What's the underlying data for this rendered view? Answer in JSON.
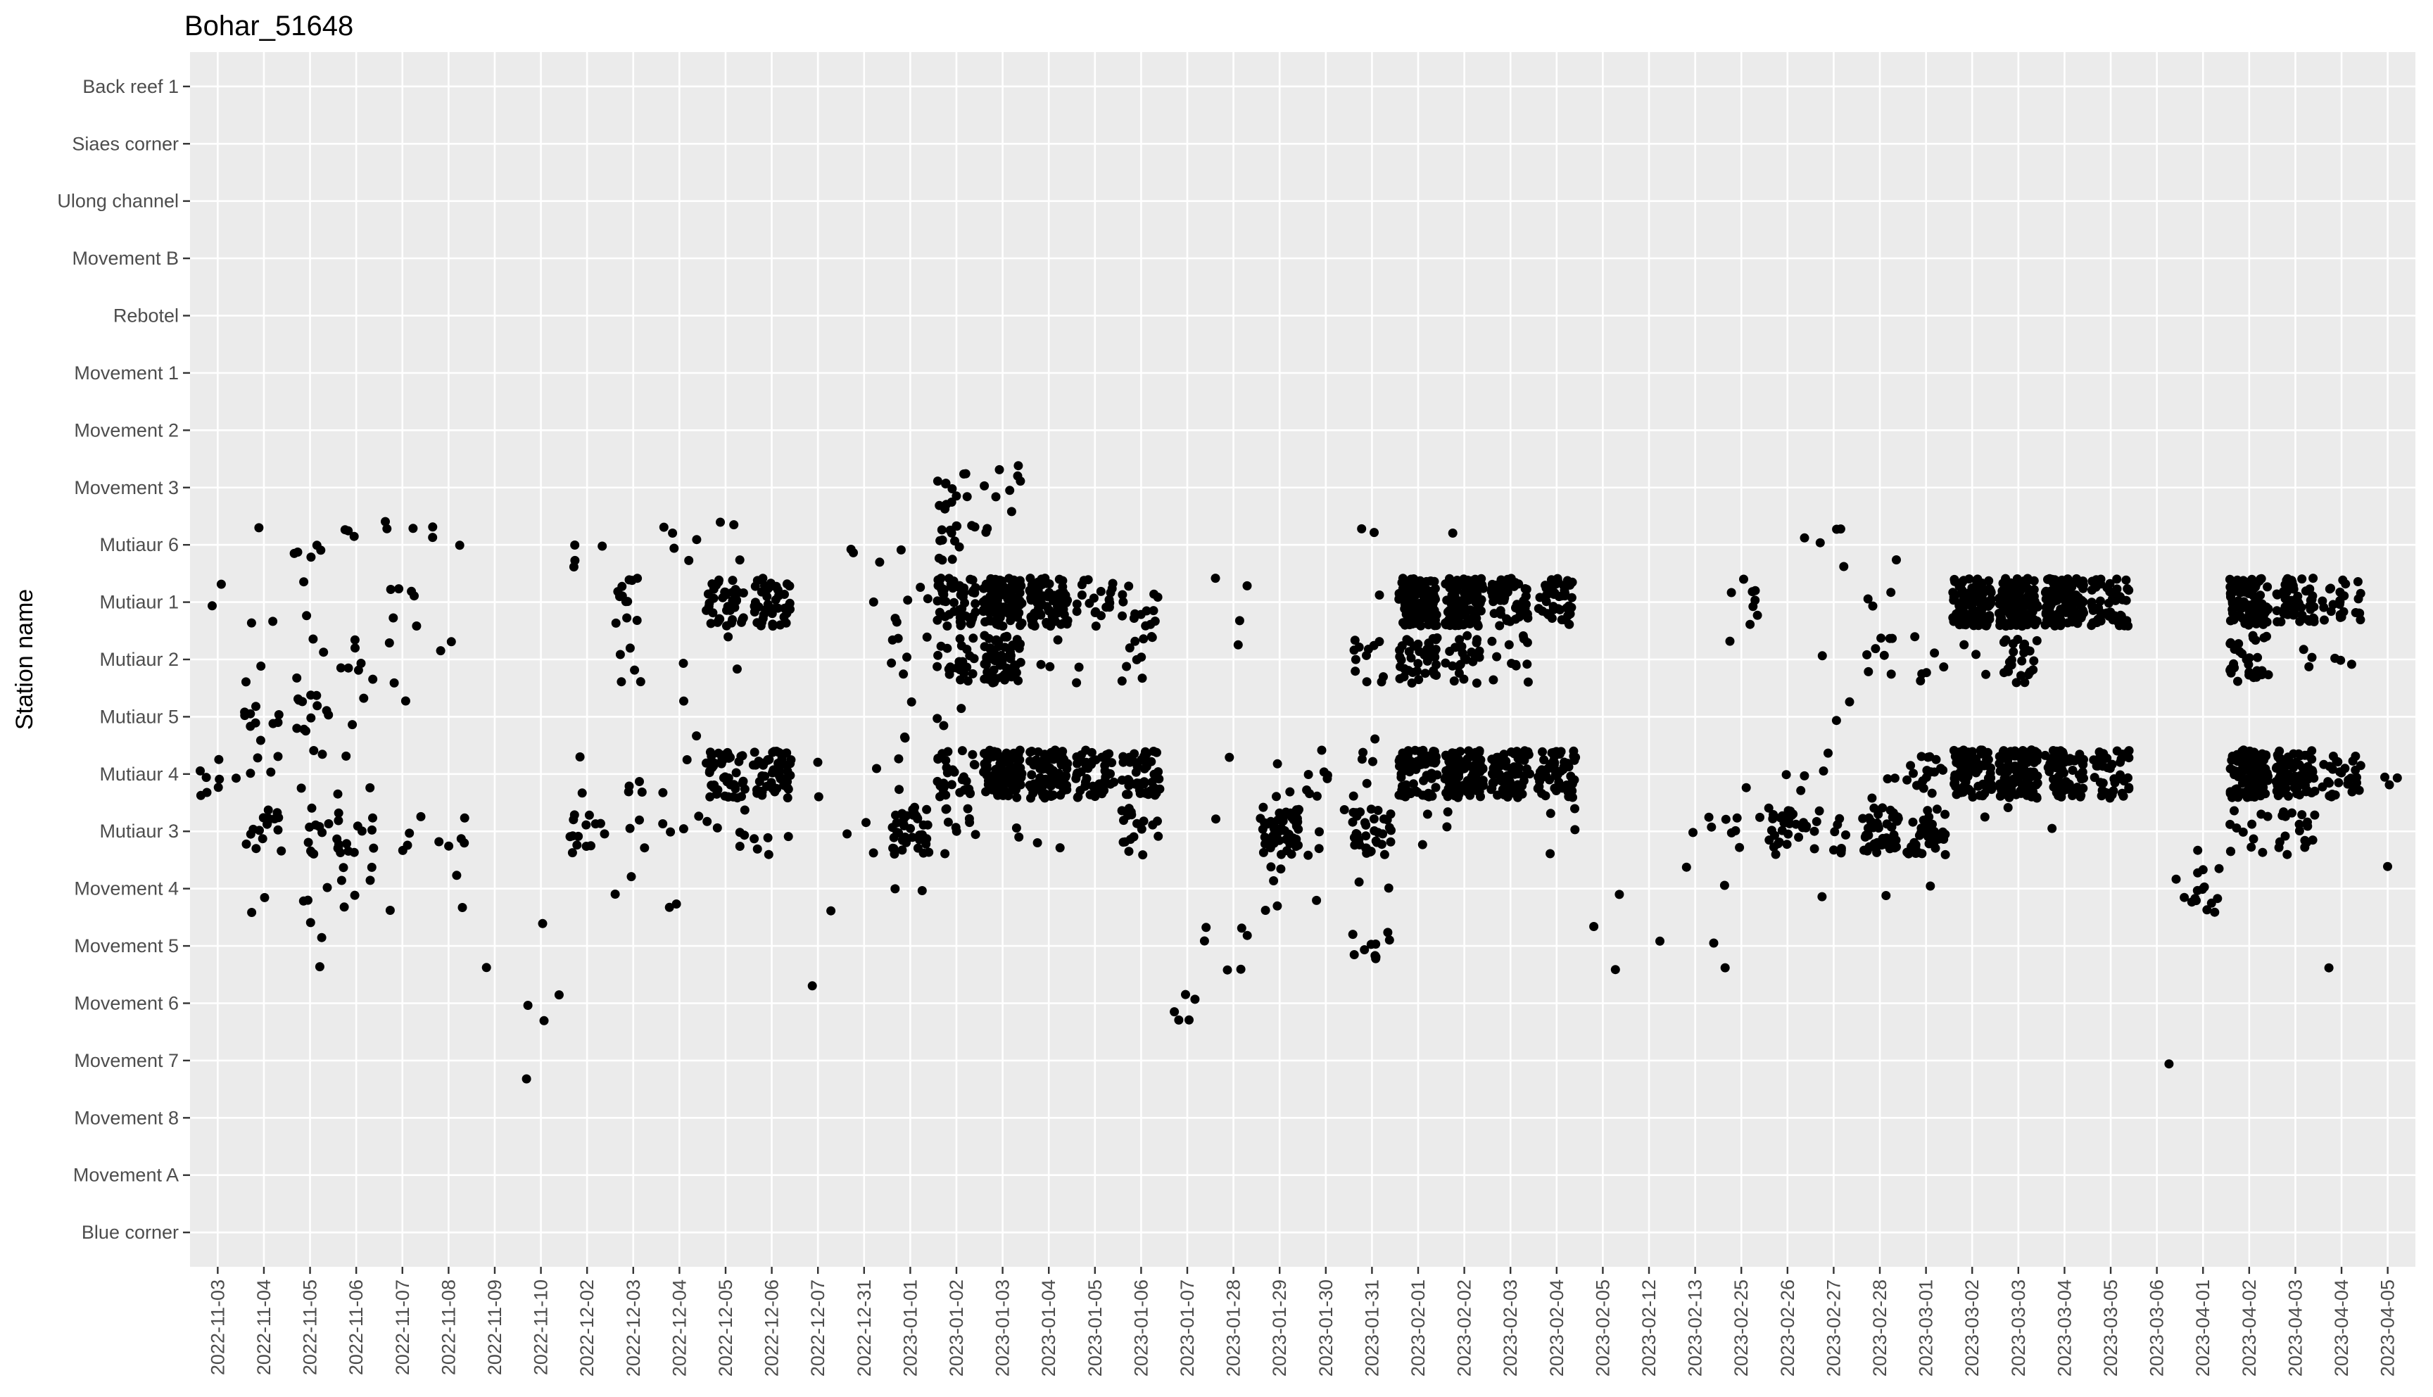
{
  "chart_data": {
    "type": "scatter",
    "title": "Bohar_51648",
    "xlabel": "",
    "ylabel": "Station name",
    "grid": true,
    "legend": "none",
    "colors": {
      "panel": "#ebebeb",
      "grid": "#ffffff",
      "points": "#000000",
      "ticks": "#4d4d4d"
    },
    "x_categories": [
      "2022-11-03",
      "2022-11-04",
      "2022-11-05",
      "2022-11-06",
      "2022-11-07",
      "2022-11-08",
      "2022-11-09",
      "2022-11-10",
      "2022-12-02",
      "2022-12-03",
      "2022-12-04",
      "2022-12-05",
      "2022-12-06",
      "2022-12-07",
      "2022-12-31",
      "2023-01-01",
      "2023-01-02",
      "2023-01-03",
      "2023-01-04",
      "2023-01-05",
      "2023-01-06",
      "2023-01-07",
      "2023-01-28",
      "2023-01-29",
      "2023-01-30",
      "2023-01-31",
      "2023-02-01",
      "2023-02-02",
      "2023-02-03",
      "2023-02-04",
      "2023-02-05",
      "2023-02-12",
      "2023-02-13",
      "2023-02-25",
      "2023-02-26",
      "2023-02-27",
      "2023-02-28",
      "2023-03-01",
      "2023-03-02",
      "2023-03-03",
      "2023-03-04",
      "2023-03-05",
      "2023-03-06",
      "2023-04-01",
      "2023-04-02",
      "2023-04-03",
      "2023-04-04",
      "2023-04-05"
    ],
    "y_categories": [
      "Blue corner",
      "Movement A",
      "Movement 8",
      "Movement 7",
      "Movement 6",
      "Movement 5",
      "Movement 4",
      "Mutiaur 3",
      "Mutiaur 4",
      "Mutiaur 5",
      "Mutiaur 2",
      "Mutiaur 1",
      "Mutiaur 6",
      "Movement 3",
      "Movement 2",
      "Movement 1",
      "Rebotel",
      "Movement B",
      "Ulong channel",
      "Siaes corner",
      "Back reef 1"
    ],
    "point_groups": [
      {
        "x": "2022-11-03",
        "y": "Mutiaur 4",
        "n": 8
      },
      {
        "x": "2022-11-03",
        "y": "Mutiaur 1",
        "n": 2
      },
      {
        "x": "2022-11-04",
        "y": "Mutiaur 6",
        "n": 1
      },
      {
        "x": "2022-11-04",
        "y": "Mutiaur 1",
        "n": 2
      },
      {
        "x": "2022-11-04",
        "y": "Mutiaur 2",
        "n": 2
      },
      {
        "x": "2022-11-04",
        "y": "Mutiaur 5",
        "n": 10
      },
      {
        "x": "2022-11-04",
        "y": "Mutiaur 4",
        "n": 4
      },
      {
        "x": "2022-11-04",
        "y": "Mutiaur 3",
        "n": 16
      },
      {
        "x": "2022-11-04",
        "y": "Movement 4",
        "n": 2
      },
      {
        "x": "2022-11-05",
        "y": "Mutiaur 6",
        "n": 5
      },
      {
        "x": "2022-11-05",
        "y": "Mutiaur 1",
        "n": 2
      },
      {
        "x": "2022-11-05",
        "y": "Mutiaur 2",
        "n": 3
      },
      {
        "x": "2022-11-05",
        "y": "Mutiaur 5",
        "n": 12
      },
      {
        "x": "2022-11-05",
        "y": "Mutiaur 4",
        "n": 3
      },
      {
        "x": "2022-11-05",
        "y": "Mutiaur 3",
        "n": 10
      },
      {
        "x": "2022-11-05",
        "y": "Movement 4",
        "n": 3
      },
      {
        "x": "2022-11-05",
        "y": "Movement 5",
        "n": 3
      },
      {
        "x": "2022-11-06",
        "y": "Mutiaur 6",
        "n": 3
      },
      {
        "x": "2022-11-06",
        "y": "Mutiaur 2",
        "n": 7
      },
      {
        "x": "2022-11-06",
        "y": "Mutiaur 5",
        "n": 2
      },
      {
        "x": "2022-11-06",
        "y": "Mutiaur 4",
        "n": 3
      },
      {
        "x": "2022-11-06",
        "y": "Mutiaur 3",
        "n": 16
      },
      {
        "x": "2022-11-06",
        "y": "Movement 4",
        "n": 6
      },
      {
        "x": "2022-11-07",
        "y": "Mutiaur 6",
        "n": 3
      },
      {
        "x": "2022-11-07",
        "y": "Mutiaur 1",
        "n": 6
      },
      {
        "x": "2022-11-07",
        "y": "Mutiaur 2",
        "n": 2
      },
      {
        "x": "2022-11-07",
        "y": "Mutiaur 5",
        "n": 1
      },
      {
        "x": "2022-11-07",
        "y": "Mutiaur 3",
        "n": 4
      },
      {
        "x": "2022-11-07",
        "y": "Movement 4",
        "n": 1
      },
      {
        "x": "2022-11-08",
        "y": "Mutiaur 6",
        "n": 3
      },
      {
        "x": "2022-11-08",
        "y": "Mutiaur 2",
        "n": 2
      },
      {
        "x": "2022-11-08",
        "y": "Mutiaur 3",
        "n": 5
      },
      {
        "x": "2022-11-08",
        "y": "Movement 4",
        "n": 2
      },
      {
        "x": "2022-11-09",
        "y": "Movement 5",
        "n": 1
      },
      {
        "x": "2022-11-10",
        "y": "Movement 5",
        "n": 1
      },
      {
        "x": "2022-11-10",
        "y": "Movement 6",
        "n": 3
      },
      {
        "x": "2022-11-10",
        "y": "Movement 7",
        "n": 1
      },
      {
        "x": "2022-12-02",
        "y": "Mutiaur 6",
        "n": 4
      },
      {
        "x": "2022-12-02",
        "y": "Mutiaur 4",
        "n": 2
      },
      {
        "x": "2022-12-02",
        "y": "Mutiaur 3",
        "n": 14
      },
      {
        "x": "2022-12-03",
        "y": "Mutiaur 1",
        "n": 12
      },
      {
        "x": "2022-12-03",
        "y": "Mutiaur 2",
        "n": 5
      },
      {
        "x": "2022-12-03",
        "y": "Mutiaur 4",
        "n": 4
      },
      {
        "x": "2022-12-03",
        "y": "Mutiaur 3",
        "n": 3
      },
      {
        "x": "2022-12-03",
        "y": "Movement 4",
        "n": 2
      },
      {
        "x": "2022-12-04",
        "y": "Mutiaur 6",
        "n": 5
      },
      {
        "x": "2022-12-04",
        "y": "Mutiaur 2",
        "n": 1
      },
      {
        "x": "2022-12-04",
        "y": "Mutiaur 5",
        "n": 2
      },
      {
        "x": "2022-12-04",
        "y": "Mutiaur 4",
        "n": 2
      },
      {
        "x": "2022-12-04",
        "y": "Mutiaur 3",
        "n": 4
      },
      {
        "x": "2022-12-04",
        "y": "Movement 4",
        "n": 2
      },
      {
        "x": "2022-12-05",
        "y": "Mutiaur 6",
        "n": 3
      },
      {
        "x": "2022-12-05",
        "y": "Mutiaur 1",
        "n": 40
      },
      {
        "x": "2022-12-05",
        "y": "Mutiaur 2",
        "n": 2
      },
      {
        "x": "2022-12-05",
        "y": "Mutiaur 4",
        "n": 45
      },
      {
        "x": "2022-12-05",
        "y": "Mutiaur 3",
        "n": 6
      },
      {
        "x": "2022-12-06",
        "y": "Mutiaur 1",
        "n": 40
      },
      {
        "x": "2022-12-06",
        "y": "Mutiaur 4",
        "n": 55
      },
      {
        "x": "2022-12-06",
        "y": "Mutiaur 3",
        "n": 5
      },
      {
        "x": "2022-12-07",
        "y": "Mutiaur 4",
        "n": 2
      },
      {
        "x": "2022-12-07",
        "y": "Movement 4",
        "n": 1
      },
      {
        "x": "2022-12-07",
        "y": "Movement 6",
        "n": 1
      },
      {
        "x": "2022-12-31",
        "y": "Mutiaur 6",
        "n": 3
      },
      {
        "x": "2022-12-31",
        "y": "Mutiaur 1",
        "n": 1
      },
      {
        "x": "2022-12-31",
        "y": "Mutiaur 4",
        "n": 1
      },
      {
        "x": "2022-12-31",
        "y": "Mutiaur 3",
        "n": 3
      },
      {
        "x": "2023-01-01",
        "y": "Mutiaur 6",
        "n": 1
      },
      {
        "x": "2023-01-01",
        "y": "Mutiaur 1",
        "n": 5
      },
      {
        "x": "2023-01-01",
        "y": "Mutiaur 2",
        "n": 6
      },
      {
        "x": "2023-01-01",
        "y": "Mutiaur 5",
        "n": 3
      },
      {
        "x": "2023-01-01",
        "y": "Mutiaur 4",
        "n": 2
      },
      {
        "x": "2023-01-01",
        "y": "Mutiaur 3",
        "n": 40
      },
      {
        "x": "2023-01-01",
        "y": "Movement 4",
        "n": 2
      },
      {
        "x": "2023-01-02",
        "y": "Movement 3",
        "n": 12
      },
      {
        "x": "2023-01-02",
        "y": "Mutiaur 6",
        "n": 14
      },
      {
        "x": "2023-01-02",
        "y": "Mutiaur 1",
        "n": 55
      },
      {
        "x": "2023-01-02",
        "y": "Mutiaur 2",
        "n": 25
      },
      {
        "x": "2023-01-02",
        "y": "Mutiaur 5",
        "n": 3
      },
      {
        "x": "2023-01-02",
        "y": "Mutiaur 4",
        "n": 30
      },
      {
        "x": "2023-01-02",
        "y": "Mutiaur 3",
        "n": 10
      },
      {
        "x": "2023-01-03",
        "y": "Movement 3",
        "n": 8
      },
      {
        "x": "2023-01-03",
        "y": "Mutiaur 6",
        "n": 2
      },
      {
        "x": "2023-01-03",
        "y": "Mutiaur 1",
        "n": 110
      },
      {
        "x": "2023-01-03",
        "y": "Mutiaur 2",
        "n": 60
      },
      {
        "x": "2023-01-03",
        "y": "Mutiaur 4",
        "n": 95
      },
      {
        "x": "2023-01-03",
        "y": "Mutiaur 3",
        "n": 2
      },
      {
        "x": "2023-01-04",
        "y": "Mutiaur 1",
        "n": 85
      },
      {
        "x": "2023-01-04",
        "y": "Mutiaur 2",
        "n": 3
      },
      {
        "x": "2023-01-04",
        "y": "Mutiaur 4",
        "n": 85
      },
      {
        "x": "2023-01-04",
        "y": "Mutiaur 3",
        "n": 2
      },
      {
        "x": "2023-01-05",
        "y": "Mutiaur 1",
        "n": 20
      },
      {
        "x": "2023-01-05",
        "y": "Mutiaur 2",
        "n": 2
      },
      {
        "x": "2023-01-05",
        "y": "Mutiaur 4",
        "n": 45
      },
      {
        "x": "2023-01-06",
        "y": "Mutiaur 1",
        "n": 14
      },
      {
        "x": "2023-01-06",
        "y": "Mutiaur 2",
        "n": 10
      },
      {
        "x": "2023-01-06",
        "y": "Mutiaur 4",
        "n": 50
      },
      {
        "x": "2023-01-06",
        "y": "Mutiaur 3",
        "n": 18
      },
      {
        "x": "2023-01-07",
        "y": "Movement 5",
        "n": 2
      },
      {
        "x": "2023-01-07",
        "y": "Movement 6",
        "n": 5
      },
      {
        "x": "2023-01-28",
        "y": "Mutiaur 1",
        "n": 3
      },
      {
        "x": "2023-01-28",
        "y": "Mutiaur 2",
        "n": 1
      },
      {
        "x": "2023-01-28",
        "y": "Mutiaur 4",
        "n": 1
      },
      {
        "x": "2023-01-28",
        "y": "Mutiaur 3",
        "n": 1
      },
      {
        "x": "2023-01-28",
        "y": "Movement 5",
        "n": 4
      },
      {
        "x": "2023-01-29",
        "y": "Mutiaur 4",
        "n": 3
      },
      {
        "x": "2023-01-29",
        "y": "Mutiaur 3",
        "n": 55
      },
      {
        "x": "2023-01-29",
        "y": "Movement 4",
        "n": 5
      },
      {
        "x": "2023-01-30",
        "y": "Mutiaur 4",
        "n": 8
      },
      {
        "x": "2023-01-30",
        "y": "Mutiaur 3",
        "n": 4
      },
      {
        "x": "2023-01-30",
        "y": "Movement 4",
        "n": 1
      },
      {
        "x": "2023-01-31",
        "y": "Mutiaur 6",
        "n": 2
      },
      {
        "x": "2023-01-31",
        "y": "Mutiaur 1",
        "n": 1
      },
      {
        "x": "2023-01-31",
        "y": "Mutiaur 2",
        "n": 12
      },
      {
        "x": "2023-01-31",
        "y": "Mutiaur 5",
        "n": 1
      },
      {
        "x": "2023-01-31",
        "y": "Mutiaur 4",
        "n": 5
      },
      {
        "x": "2023-01-31",
        "y": "Mutiaur 3",
        "n": 35
      },
      {
        "x": "2023-01-31",
        "y": "Movement 4",
        "n": 2
      },
      {
        "x": "2023-01-31",
        "y": "Movement 5",
        "n": 10
      },
      {
        "x": "2023-02-01",
        "y": "Mutiaur 1",
        "n": 100
      },
      {
        "x": "2023-02-01",
        "y": "Mutiaur 2",
        "n": 40
      },
      {
        "x": "2023-02-01",
        "y": "Mutiaur 4",
        "n": 70
      },
      {
        "x": "2023-02-01",
        "y": "Mutiaur 3",
        "n": 2
      },
      {
        "x": "2023-02-02",
        "y": "Mutiaur 6",
        "n": 1
      },
      {
        "x": "2023-02-02",
        "y": "Mutiaur 1",
        "n": 110
      },
      {
        "x": "2023-02-02",
        "y": "Mutiaur 2",
        "n": 25
      },
      {
        "x": "2023-02-02",
        "y": "Mutiaur 4",
        "n": 110
      },
      {
        "x": "2023-02-02",
        "y": "Mutiaur 3",
        "n": 2
      },
      {
        "x": "2023-02-03",
        "y": "Mutiaur 1",
        "n": 60
      },
      {
        "x": "2023-02-03",
        "y": "Mutiaur 2",
        "n": 12
      },
      {
        "x": "2023-02-03",
        "y": "Mutiaur 4",
        "n": 75
      },
      {
        "x": "2023-02-04",
        "y": "Mutiaur 1",
        "n": 45
      },
      {
        "x": "2023-02-04",
        "y": "Mutiaur 4",
        "n": 55
      },
      {
        "x": "2023-02-04",
        "y": "Mutiaur 3",
        "n": 4
      },
      {
        "x": "2023-02-05",
        "y": "Movement 4",
        "n": 1
      },
      {
        "x": "2023-02-05",
        "y": "Movement 5",
        "n": 2
      },
      {
        "x": "2023-02-12",
        "y": "Movement 5",
        "n": 1
      },
      {
        "x": "2023-02-13",
        "y": "Mutiaur 3",
        "n": 3
      },
      {
        "x": "2023-02-13",
        "y": "Movement 4",
        "n": 1
      },
      {
        "x": "2023-02-13",
        "y": "Movement 5",
        "n": 1
      },
      {
        "x": "2023-02-25",
        "y": "Mutiaur 1",
        "n": 8
      },
      {
        "x": "2023-02-25",
        "y": "Mutiaur 2",
        "n": 1
      },
      {
        "x": "2023-02-25",
        "y": "Mutiaur 4",
        "n": 1
      },
      {
        "x": "2023-02-25",
        "y": "Mutiaur 3",
        "n": 6
      },
      {
        "x": "2023-02-25",
        "y": "Movement 4",
        "n": 1
      },
      {
        "x": "2023-02-25",
        "y": "Movement 5",
        "n": 1
      },
      {
        "x": "2023-02-26",
        "y": "Mutiaur 6",
        "n": 1
      },
      {
        "x": "2023-02-26",
        "y": "Mutiaur 4",
        "n": 3
      },
      {
        "x": "2023-02-26",
        "y": "Mutiaur 3",
        "n": 30
      },
      {
        "x": "2023-02-27",
        "y": "Mutiaur 6",
        "n": 4
      },
      {
        "x": "2023-02-27",
        "y": "Mutiaur 2",
        "n": 1
      },
      {
        "x": "2023-02-27",
        "y": "Mutiaur 5",
        "n": 2
      },
      {
        "x": "2023-02-27",
        "y": "Mutiaur 4",
        "n": 2
      },
      {
        "x": "2023-02-27",
        "y": "Mutiaur 3",
        "n": 12
      },
      {
        "x": "2023-02-27",
        "y": "Movement 4",
        "n": 1
      },
      {
        "x": "2023-02-28",
        "y": "Mutiaur 6",
        "n": 1
      },
      {
        "x": "2023-02-28",
        "y": "Mutiaur 1",
        "n": 3
      },
      {
        "x": "2023-02-28",
        "y": "Mutiaur 2",
        "n": 8
      },
      {
        "x": "2023-02-28",
        "y": "Mutiaur 4",
        "n": 3
      },
      {
        "x": "2023-02-28",
        "y": "Mutiaur 3",
        "n": 45
      },
      {
        "x": "2023-02-28",
        "y": "Movement 4",
        "n": 1
      },
      {
        "x": "2023-03-01",
        "y": "Mutiaur 2",
        "n": 6
      },
      {
        "x": "2023-03-01",
        "y": "Mutiaur 4",
        "n": 18
      },
      {
        "x": "2023-03-01",
        "y": "Mutiaur 3",
        "n": 40
      },
      {
        "x": "2023-03-01",
        "y": "Movement 4",
        "n": 1
      },
      {
        "x": "2023-03-02",
        "y": "Mutiaur 1",
        "n": 120
      },
      {
        "x": "2023-03-02",
        "y": "Mutiaur 2",
        "n": 3
      },
      {
        "x": "2023-03-02",
        "y": "Mutiaur 4",
        "n": 70
      },
      {
        "x": "2023-03-02",
        "y": "Mutiaur 3",
        "n": 1
      },
      {
        "x": "2023-03-03",
        "y": "Mutiaur 1",
        "n": 120
      },
      {
        "x": "2023-03-03",
        "y": "Mutiaur 2",
        "n": 25
      },
      {
        "x": "2023-03-03",
        "y": "Mutiaur 4",
        "n": 95
      },
      {
        "x": "2023-03-03",
        "y": "Mutiaur 3",
        "n": 1
      },
      {
        "x": "2023-03-04",
        "y": "Mutiaur 1",
        "n": 110
      },
      {
        "x": "2023-03-04",
        "y": "Mutiaur 4",
        "n": 70
      },
      {
        "x": "2023-03-04",
        "y": "Mutiaur 3",
        "n": 1
      },
      {
        "x": "2023-03-05",
        "y": "Mutiaur 1",
        "n": 55
      },
      {
        "x": "2023-03-05",
        "y": "Mutiaur 4",
        "n": 45
      },
      {
        "x": "2023-03-06",
        "y": "Movement 7",
        "n": 1
      },
      {
        "x": "2023-03-06",
        "y": "Movement 4",
        "n": 1
      },
      {
        "x": "2023-04-01",
        "y": "Mutiaur 3",
        "n": 1
      },
      {
        "x": "2023-04-01",
        "y": "Movement 4",
        "n": 14
      },
      {
        "x": "2023-04-02",
        "y": "Mutiaur 1",
        "n": 90
      },
      {
        "x": "2023-04-02",
        "y": "Mutiaur 2",
        "n": 30
      },
      {
        "x": "2023-04-02",
        "y": "Mutiaur 4",
        "n": 110
      },
      {
        "x": "2023-04-02",
        "y": "Mutiaur 3",
        "n": 12
      },
      {
        "x": "2023-04-03",
        "y": "Mutiaur 1",
        "n": 55
      },
      {
        "x": "2023-04-03",
        "y": "Mutiaur 2",
        "n": 3
      },
      {
        "x": "2023-04-03",
        "y": "Mutiaur 4",
        "n": 85
      },
      {
        "x": "2023-04-03",
        "y": "Mutiaur 3",
        "n": 18
      },
      {
        "x": "2023-04-04",
        "y": "Mutiaur 1",
        "n": 25
      },
      {
        "x": "2023-04-04",
        "y": "Mutiaur 2",
        "n": 3
      },
      {
        "x": "2023-04-04",
        "y": "Mutiaur 4",
        "n": 30
      },
      {
        "x": "2023-04-04",
        "y": "Movement 5",
        "n": 1
      },
      {
        "x": "2023-04-05",
        "y": "Mutiaur 4",
        "n": 3
      },
      {
        "x": "2023-04-05",
        "y": "Movement 4",
        "n": 1
      }
    ]
  }
}
